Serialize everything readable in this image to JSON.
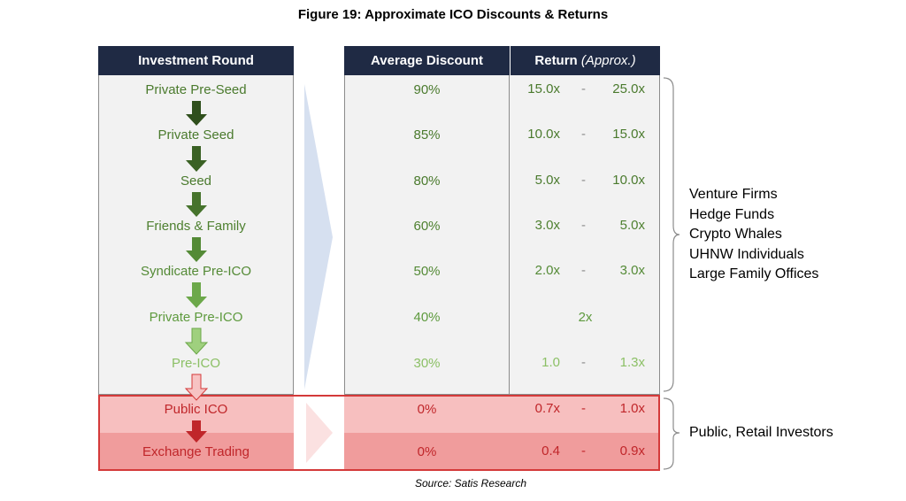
{
  "title": "Figure 19: Approximate ICO Discounts & Returns",
  "source": "Source: Satis Research",
  "colors": {
    "header_bg": "#1f2a44",
    "grey_panel": "#f2f2f2",
    "public_ico_band": "#f7bfbf",
    "exchange_band": "#f09c9c",
    "band_border": "#d43a3a"
  },
  "chart_data": {
    "type": "table",
    "title": "Figure 19: Approximate ICO Discounts & Returns",
    "columns": {
      "round": "Investment Round",
      "discount": "Average Discount",
      "return_main": "Return",
      "return_note": "(Approx.)"
    },
    "rows": [
      {
        "round": "Private Pre-Seed",
        "discount": "90%",
        "ret_low": "15.0x",
        "ret_sep": "-",
        "ret_high": "25.0x",
        "ret_single": "",
        "text_color": "#4a7a2d",
        "arrow_color": "#2f4f1c"
      },
      {
        "round": "Private Seed",
        "discount": "85%",
        "ret_low": "10.0x",
        "ret_sep": "-",
        "ret_high": "15.0x",
        "ret_single": "",
        "text_color": "#4a7a2d",
        "arrow_color": "#3a6124"
      },
      {
        "round": "Seed",
        "discount": "80%",
        "ret_low": "5.0x",
        "ret_sep": "-",
        "ret_high": "10.0x",
        "ret_single": "",
        "text_color": "#4a7a2d",
        "arrow_color": "#46732c"
      },
      {
        "round": "Friends & Family",
        "discount": "60%",
        "ret_low": "3.0x",
        "ret_sep": "-",
        "ret_high": "5.0x",
        "ret_single": "",
        "text_color": "#4e8030",
        "arrow_color": "#548a36"
      },
      {
        "round": "Syndicate Pre-ICO",
        "discount": "50%",
        "ret_low": "2.0x",
        "ret_sep": "-",
        "ret_high": "3.0x",
        "ret_single": "",
        "text_color": "#548a36",
        "arrow_color": "#6ca84a"
      },
      {
        "round": "Private Pre-ICO",
        "discount": "40%",
        "ret_low": "",
        "ret_sep": "",
        "ret_high": "",
        "ret_single": "2x",
        "text_color": "#5e9a3e",
        "arrow_color": "#9fd07e"
      },
      {
        "round": "Pre-ICO",
        "discount": "30%",
        "ret_low": "1.0",
        "ret_sep": "-",
        "ret_high": "1.3x",
        "ret_single": "",
        "text_color": "#8cc066",
        "arrow_color": "#f7c3c3"
      },
      {
        "round": "Public ICO",
        "discount": "0%",
        "ret_low": "0.7x",
        "ret_sep": "-",
        "ret_high": "1.0x",
        "ret_single": "",
        "text_color": "#c0262a",
        "arrow_color": "#c0262a"
      },
      {
        "round": "Exchange Trading",
        "discount": "0%",
        "ret_low": "0.4",
        "ret_sep": "-",
        "ret_high": "0.9x",
        "ret_single": "",
        "text_color": "#c0262a",
        "arrow_color": ""
      }
    ],
    "investor_groups": [
      {
        "lines": [
          "Venture Firms",
          "Hedge Funds",
          "Crypto Whales",
          "UHNW Individuals",
          "Large Family Offices"
        ]
      },
      {
        "lines": [
          "Public, Retail Investors"
        ]
      }
    ]
  }
}
